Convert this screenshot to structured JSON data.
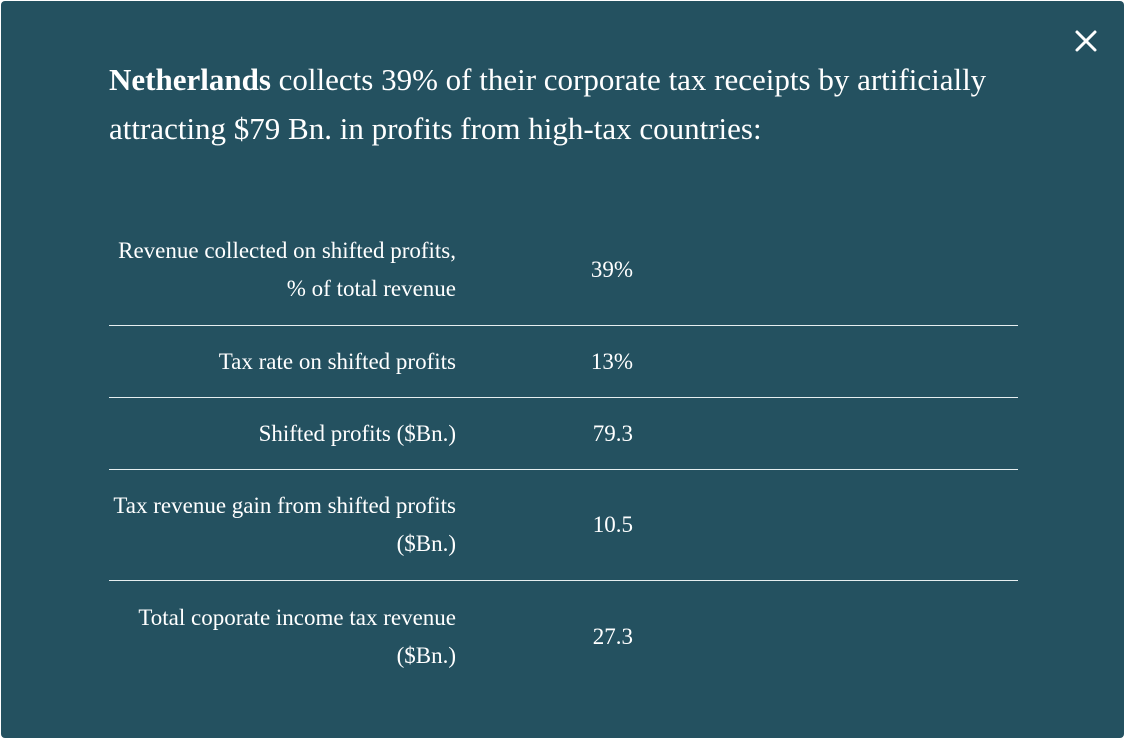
{
  "modal": {
    "close_icon": "close-icon",
    "colors": {
      "background": "#245160",
      "text": "#ffffff",
      "divider": "#e6eef0"
    },
    "headline": {
      "country": "Netherlands",
      "rest": " collects 39% of their corporate tax receipts by artificially attracting $79 Bn. in profits from high-tax countries:"
    },
    "stats": [
      {
        "label": "Revenue collected on shifted profits, % of total revenue",
        "value": "39%"
      },
      {
        "label": "Tax rate on shifted profits",
        "value": "13%"
      },
      {
        "label": "Shifted profits ($Bn.)",
        "value": "79.3"
      },
      {
        "label": "Tax revenue gain from shifted profits ($Bn.)",
        "value": "10.5"
      },
      {
        "label": "Total coporate income tax revenue ($Bn.)",
        "value": "27.3"
      }
    ]
  }
}
